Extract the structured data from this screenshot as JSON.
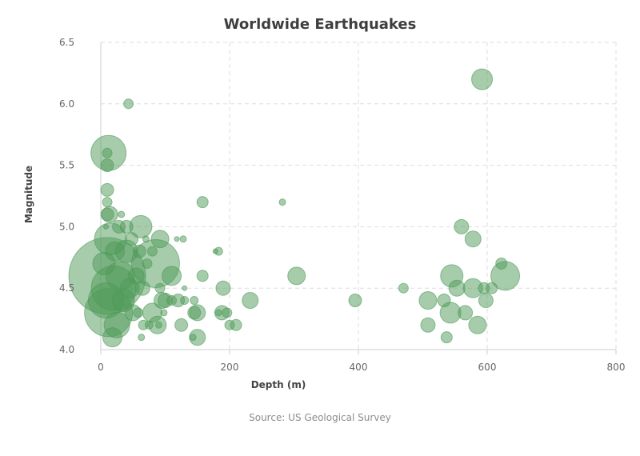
{
  "chart_data": {
    "type": "scatter",
    "title": "Worldwide Earthquakes",
    "subtitle": "",
    "source": "Source: US Geological Survey",
    "xlabel": "Depth (m)",
    "ylabel": "Magnitude",
    "xlim": [
      0,
      800
    ],
    "ylim": [
      4.0,
      6.5
    ],
    "xticks": [
      0,
      200,
      400,
      600,
      800
    ],
    "yticks": [
      4.0,
      4.5,
      5.0,
      5.5,
      6.0,
      6.5
    ],
    "xtick_labels": [
      "0",
      "200",
      "400",
      "600",
      "800"
    ],
    "ytick_labels": [
      "4.0",
      "4.5",
      "5.0",
      "5.5",
      "6.0",
      "6.5"
    ],
    "grid": true,
    "color": "#4e9a58",
    "point_opacity": 0.5,
    "size_encoding": "relative bubble size",
    "points": [
      {
        "x": 10,
        "y": 4.6,
        "size": 48
      },
      {
        "x": 12,
        "y": 4.3,
        "size": 30
      },
      {
        "x": 20,
        "y": 4.5,
        "size": 28
      },
      {
        "x": 85,
        "y": 4.7,
        "size": 30
      },
      {
        "x": 15,
        "y": 4.9,
        "size": 20
      },
      {
        "x": 8,
        "y": 4.4,
        "size": 22
      },
      {
        "x": 25,
        "y": 4.2,
        "size": 16
      },
      {
        "x": 30,
        "y": 4.6,
        "size": 18
      },
      {
        "x": 40,
        "y": 4.8,
        "size": 14
      },
      {
        "x": 12,
        "y": 5.6,
        "size": 22
      },
      {
        "x": 5,
        "y": 4.7,
        "size": 14
      },
      {
        "x": 18,
        "y": 4.1,
        "size": 12
      },
      {
        "x": 45,
        "y": 4.5,
        "size": 12
      },
      {
        "x": 55,
        "y": 4.6,
        "size": 10
      },
      {
        "x": 62,
        "y": 5.0,
        "size": 14
      },
      {
        "x": 92,
        "y": 4.9,
        "size": 11
      },
      {
        "x": 110,
        "y": 4.6,
        "size": 12
      },
      {
        "x": 95,
        "y": 4.4,
        "size": 10
      },
      {
        "x": 80,
        "y": 4.3,
        "size": 12
      },
      {
        "x": 88,
        "y": 4.2,
        "size": 11
      },
      {
        "x": 35,
        "y": 4.4,
        "size": 14
      },
      {
        "x": 50,
        "y": 4.3,
        "size": 10
      },
      {
        "x": 22,
        "y": 4.8,
        "size": 12
      },
      {
        "x": 28,
        "y": 5.0,
        "size": 8
      },
      {
        "x": 14,
        "y": 5.1,
        "size": 10
      },
      {
        "x": 10,
        "y": 5.1,
        "size": 8
      },
      {
        "x": 10,
        "y": 5.3,
        "size": 8
      },
      {
        "x": 10,
        "y": 5.5,
        "size": 8
      },
      {
        "x": 10,
        "y": 5.2,
        "size": 6
      },
      {
        "x": 10,
        "y": 5.6,
        "size": 6
      },
      {
        "x": 43,
        "y": 6.0,
        "size": 6
      },
      {
        "x": 32,
        "y": 5.1,
        "size": 4
      },
      {
        "x": 8,
        "y": 5.0,
        "size": 3
      },
      {
        "x": 40,
        "y": 5.0,
        "size": 8
      },
      {
        "x": 48,
        "y": 4.9,
        "size": 8
      },
      {
        "x": 60,
        "y": 4.8,
        "size": 8
      },
      {
        "x": 70,
        "y": 4.9,
        "size": 4
      },
      {
        "x": 65,
        "y": 4.5,
        "size": 9
      },
      {
        "x": 72,
        "y": 4.7,
        "size": 6
      },
      {
        "x": 75,
        "y": 4.2,
        "size": 5
      },
      {
        "x": 66,
        "y": 4.2,
        "size": 6
      },
      {
        "x": 63,
        "y": 4.1,
        "size": 4
      },
      {
        "x": 58,
        "y": 4.3,
        "size": 6
      },
      {
        "x": 98,
        "y": 4.3,
        "size": 4
      },
      {
        "x": 92,
        "y": 4.5,
        "size": 6
      },
      {
        "x": 90,
        "y": 4.2,
        "size": 4
      },
      {
        "x": 100,
        "y": 4.4,
        "size": 9
      },
      {
        "x": 110,
        "y": 4.4,
        "size": 6
      },
      {
        "x": 120,
        "y": 4.4,
        "size": 8
      },
      {
        "x": 125,
        "y": 4.2,
        "size": 8
      },
      {
        "x": 130,
        "y": 4.4,
        "size": 5
      },
      {
        "x": 130,
        "y": 4.5,
        "size": 3
      },
      {
        "x": 118,
        "y": 4.9,
        "size": 3
      },
      {
        "x": 128,
        "y": 4.9,
        "size": 4
      },
      {
        "x": 80,
        "y": 4.8,
        "size": 6
      },
      {
        "x": 145,
        "y": 4.4,
        "size": 5
      },
      {
        "x": 145,
        "y": 4.3,
        "size": 8
      },
      {
        "x": 150,
        "y": 4.3,
        "size": 10
      },
      {
        "x": 150,
        "y": 4.1,
        "size": 10
      },
      {
        "x": 143,
        "y": 4.1,
        "size": 4
      },
      {
        "x": 158,
        "y": 4.6,
        "size": 7
      },
      {
        "x": 158,
        "y": 5.2,
        "size": 7
      },
      {
        "x": 178,
        "y": 4.8,
        "size": 3
      },
      {
        "x": 183,
        "y": 4.8,
        "size": 5
      },
      {
        "x": 183,
        "y": 4.3,
        "size": 4
      },
      {
        "x": 188,
        "y": 4.3,
        "size": 9
      },
      {
        "x": 190,
        "y": 4.5,
        "size": 9
      },
      {
        "x": 196,
        "y": 4.3,
        "size": 6
      },
      {
        "x": 200,
        "y": 4.2,
        "size": 6
      },
      {
        "x": 210,
        "y": 4.2,
        "size": 7
      },
      {
        "x": 232,
        "y": 4.4,
        "size": 10
      },
      {
        "x": 282,
        "y": 5.2,
        "size": 4
      },
      {
        "x": 304,
        "y": 4.6,
        "size": 11
      },
      {
        "x": 395,
        "y": 4.4,
        "size": 8
      },
      {
        "x": 470,
        "y": 4.5,
        "size": 6
      },
      {
        "x": 508,
        "y": 4.4,
        "size": 11
      },
      {
        "x": 508,
        "y": 4.2,
        "size": 9
      },
      {
        "x": 533,
        "y": 4.4,
        "size": 8
      },
      {
        "x": 537,
        "y": 4.1,
        "size": 7
      },
      {
        "x": 545,
        "y": 4.6,
        "size": 14
      },
      {
        "x": 543,
        "y": 4.3,
        "size": 13
      },
      {
        "x": 553,
        "y": 4.5,
        "size": 10
      },
      {
        "x": 560,
        "y": 5.0,
        "size": 9
      },
      {
        "x": 566,
        "y": 4.3,
        "size": 9
      },
      {
        "x": 578,
        "y": 4.5,
        "size": 12
      },
      {
        "x": 578,
        "y": 4.9,
        "size": 10
      },
      {
        "x": 585,
        "y": 4.2,
        "size": 11
      },
      {
        "x": 592,
        "y": 6.2,
        "size": 13
      },
      {
        "x": 595,
        "y": 4.5,
        "size": 7
      },
      {
        "x": 598,
        "y": 4.4,
        "size": 9
      },
      {
        "x": 607,
        "y": 4.5,
        "size": 7
      },
      {
        "x": 622,
        "y": 4.7,
        "size": 7
      },
      {
        "x": 628,
        "y": 4.6,
        "size": 18
      }
    ]
  }
}
